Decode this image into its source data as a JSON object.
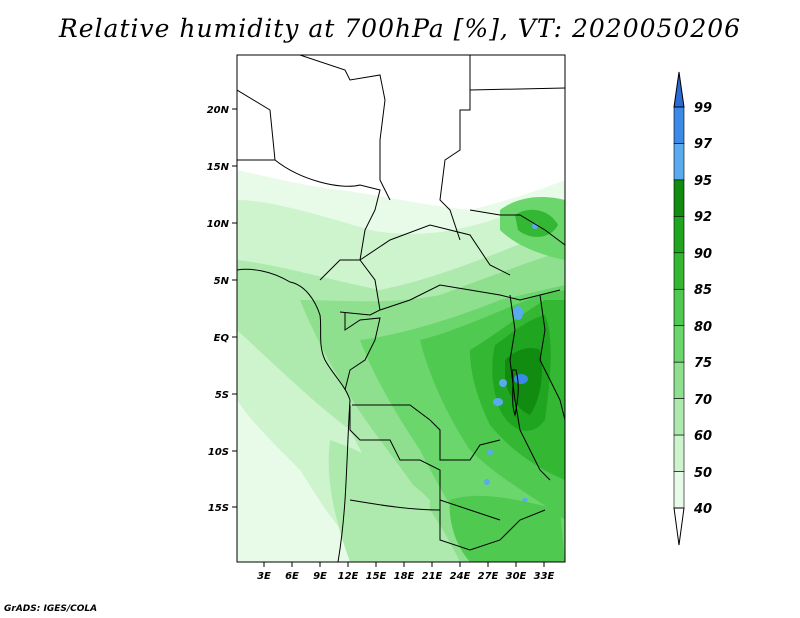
{
  "title": "Relative humidity at 700hPa [%], VT: 2020050206",
  "credit": "GrADS: IGES/COLA",
  "map": {
    "lon_range": [
      0,
      35
    ],
    "lat_range": [
      -20,
      25
    ],
    "lon_ticks": [
      "3E",
      "6E",
      "9E",
      "12E",
      "15E",
      "18E",
      "21E",
      "24E",
      "27E",
      "30E",
      "33E"
    ],
    "lat_ticks": [
      "20N",
      "15N",
      "10N",
      "5N",
      "EQ",
      "5S",
      "10S",
      "15S"
    ]
  },
  "colorbar": {
    "levels": [
      "99",
      "97",
      "95",
      "92",
      "90",
      "85",
      "80",
      "75",
      "70",
      "60",
      "50",
      "40"
    ],
    "colors": [
      "#2b6bd6",
      "#3c8ae8",
      "#5aaaf0",
      "#118c11",
      "#1fa51f",
      "#34b834",
      "#4fc94f",
      "#6bd66b",
      "#8ee08e",
      "#aeeaae",
      "#cdf4cd",
      "#e8fbe8"
    ]
  }
}
